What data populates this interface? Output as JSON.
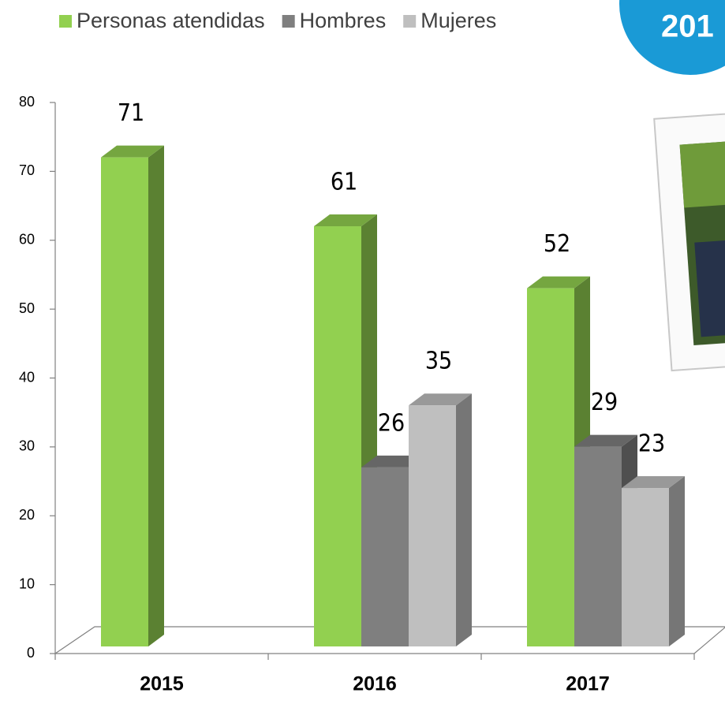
{
  "chart_data": {
    "type": "bar",
    "categories": [
      "2015",
      "2016",
      "2017"
    ],
    "series": [
      {
        "name": "Personas atendidas",
        "color": "#92d050",
        "values": [
          71,
          61,
          52
        ]
      },
      {
        "name": "Hombres",
        "color": "#7f7f7f",
        "values": [
          null,
          26,
          29
        ]
      },
      {
        "name": "Mujeres",
        "color": "#bfbfbf",
        "values": [
          null,
          35,
          23
        ]
      }
    ],
    "ylim": [
      0,
      80
    ],
    "yticks": [
      0,
      10,
      20,
      30,
      40,
      50,
      60,
      70,
      80
    ],
    "badge": "201"
  }
}
